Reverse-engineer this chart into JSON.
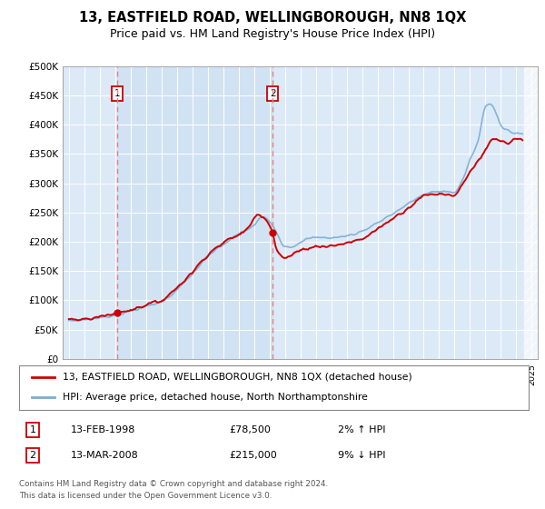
{
  "title": "13, EASTFIELD ROAD, WELLINGBOROUGH, NN8 1QX",
  "subtitle": "Price paid vs. HM Land Registry's House Price Index (HPI)",
  "title_fontsize": 10.5,
  "subtitle_fontsize": 9,
  "background_color": "#ffffff",
  "plot_bg_color": "#dce9f7",
  "plot_bg_color2": "#e8f0fa",
  "ylim": [
    0,
    500000
  ],
  "yticks": [
    0,
    50000,
    100000,
    150000,
    200000,
    250000,
    300000,
    350000,
    400000,
    450000,
    500000
  ],
  "ytick_labels": [
    "£0",
    "£50K",
    "£100K",
    "£150K",
    "£200K",
    "£250K",
    "£300K",
    "£350K",
    "£400K",
    "£450K",
    "£500K"
  ],
  "hpi_color": "#7aadd4",
  "price_color": "#cc0000",
  "marker_color": "#cc0000",
  "dashed_line_color": "#e88080",
  "sale1_year": 1998.12,
  "sale1_price": 78500,
  "sale2_year": 2008.21,
  "sale2_price": 215000,
  "legend_line1": "13, EASTFIELD ROAD, WELLINGBOROUGH, NN8 1QX (detached house)",
  "legend_line2": "HPI: Average price, detached house, North Northamptonshire",
  "footnote1": "Contains HM Land Registry data © Crown copyright and database right 2024.",
  "footnote2": "This data is licensed under the Open Government Licence v3.0.",
  "table_row1_num": "1",
  "table_row1_date": "13-FEB-1998",
  "table_row1_price": "£78,500",
  "table_row1_hpi": "2% ↑ HPI",
  "table_row2_num": "2",
  "table_row2_date": "13-MAR-2008",
  "table_row2_price": "£215,000",
  "table_row2_hpi": "9% ↓ HPI",
  "xlim_start": 1994.6,
  "xlim_end": 2025.4,
  "hpi_years": [
    1995.0,
    1995.1,
    1995.2,
    1995.3,
    1995.4,
    1995.5,
    1995.6,
    1995.7,
    1995.8,
    1995.9,
    1996.0,
    1996.1,
    1996.2,
    1996.3,
    1996.4,
    1996.5,
    1996.6,
    1996.7,
    1996.8,
    1996.9,
    1997.0,
    1997.1,
    1997.2,
    1997.3,
    1997.4,
    1997.5,
    1997.6,
    1997.7,
    1997.8,
    1997.9,
    1998.0,
    1998.1,
    1998.2,
    1998.3,
    1998.4,
    1998.5,
    1998.6,
    1998.7,
    1998.8,
    1998.9,
    1999.0,
    1999.1,
    1999.2,
    1999.3,
    1999.4,
    1999.5,
    1999.6,
    1999.7,
    1999.8,
    1999.9,
    2000.0,
    2000.1,
    2000.2,
    2000.3,
    2000.4,
    2000.5,
    2000.6,
    2000.7,
    2000.8,
    2000.9,
    2001.0,
    2001.1,
    2001.2,
    2001.3,
    2001.4,
    2001.5,
    2001.6,
    2001.7,
    2001.8,
    2001.9,
    2002.0,
    2002.1,
    2002.2,
    2002.3,
    2002.4,
    2002.5,
    2002.6,
    2002.7,
    2002.8,
    2002.9,
    2003.0,
    2003.1,
    2003.2,
    2003.3,
    2003.4,
    2003.5,
    2003.6,
    2003.7,
    2003.8,
    2003.9,
    2004.0,
    2004.1,
    2004.2,
    2004.3,
    2004.4,
    2004.5,
    2004.6,
    2004.7,
    2004.8,
    2004.9,
    2005.0,
    2005.1,
    2005.2,
    2005.3,
    2005.4,
    2005.5,
    2005.6,
    2005.7,
    2005.8,
    2005.9,
    2006.0,
    2006.1,
    2006.2,
    2006.3,
    2006.4,
    2006.5,
    2006.6,
    2006.7,
    2006.8,
    2006.9,
    2007.0,
    2007.1,
    2007.2,
    2007.3,
    2007.4,
    2007.5,
    2007.6,
    2007.7,
    2007.8,
    2007.9,
    2008.0,
    2008.1,
    2008.2,
    2008.3,
    2008.4,
    2008.5,
    2008.6,
    2008.7,
    2008.8,
    2008.9,
    2009.0,
    2009.1,
    2009.2,
    2009.3,
    2009.4,
    2009.5,
    2009.6,
    2009.7,
    2009.8,
    2009.9,
    2010.0,
    2010.1,
    2010.2,
    2010.3,
    2010.4,
    2010.5,
    2010.6,
    2010.7,
    2010.8,
    2010.9,
    2011.0,
    2011.1,
    2011.2,
    2011.3,
    2011.4,
    2011.5,
    2011.6,
    2011.7,
    2011.8,
    2011.9,
    2012.0,
    2012.1,
    2012.2,
    2012.3,
    2012.4,
    2012.5,
    2012.6,
    2012.7,
    2012.8,
    2012.9,
    2013.0,
    2013.1,
    2013.2,
    2013.3,
    2013.4,
    2013.5,
    2013.6,
    2013.7,
    2013.8,
    2013.9,
    2014.0,
    2014.1,
    2014.2,
    2014.3,
    2014.4,
    2014.5,
    2014.6,
    2014.7,
    2014.8,
    2014.9,
    2015.0,
    2015.1,
    2015.2,
    2015.3,
    2015.4,
    2015.5,
    2015.6,
    2015.7,
    2015.8,
    2015.9,
    2016.0,
    2016.1,
    2016.2,
    2016.3,
    2016.4,
    2016.5,
    2016.6,
    2016.7,
    2016.8,
    2016.9,
    2017.0,
    2017.1,
    2017.2,
    2017.3,
    2017.4,
    2017.5,
    2017.6,
    2017.7,
    2017.8,
    2017.9,
    2018.0,
    2018.1,
    2018.2,
    2018.3,
    2018.4,
    2018.5,
    2018.6,
    2018.7,
    2018.8,
    2018.9,
    2019.0,
    2019.1,
    2019.2,
    2019.3,
    2019.4,
    2019.5,
    2019.6,
    2019.7,
    2019.8,
    2019.9,
    2020.0,
    2020.1,
    2020.2,
    2020.3,
    2020.4,
    2020.5,
    2020.6,
    2020.7,
    2020.8,
    2020.9,
    2021.0,
    2021.1,
    2021.2,
    2021.3,
    2021.4,
    2021.5,
    2021.6,
    2021.7,
    2021.8,
    2021.9,
    2022.0,
    2022.1,
    2022.2,
    2022.3,
    2022.4,
    2022.5,
    2022.6,
    2022.7,
    2022.8,
    2022.9,
    2023.0,
    2023.1,
    2023.2,
    2023.3,
    2023.4,
    2023.5,
    2023.6,
    2023.7,
    2023.8,
    2023.9,
    2024.0,
    2024.1,
    2024.2,
    2024.3,
    2024.4
  ],
  "hpi_key_years": [
    1995,
    1996,
    1997,
    1998,
    1999,
    2000,
    2001,
    2002,
    2003,
    2004,
    2005,
    2006,
    2007,
    2007.5,
    2008,
    2008.5,
    2009,
    2009.5,
    2010,
    2011,
    2012,
    2013,
    2014,
    2015,
    2016,
    2017,
    2018,
    2019,
    2020,
    2020.5,
    2021,
    2021.5,
    2022,
    2022.3,
    2022.7,
    2023,
    2023.5,
    2024,
    2024.4
  ],
  "hpi_key_vals": [
    65000,
    67000,
    70000,
    75000,
    82000,
    90000,
    98000,
    118000,
    145000,
    175000,
    195000,
    213000,
    228000,
    242000,
    235000,
    215000,
    192000,
    192000,
    200000,
    207000,
    207000,
    210000,
    218000,
    233000,
    248000,
    265000,
    280000,
    286000,
    285000,
    305000,
    340000,
    370000,
    430000,
    435000,
    420000,
    400000,
    390000,
    385000,
    385000
  ],
  "price_key_years": [
    1995,
    1996,
    1997,
    1998.12,
    1999,
    2000,
    2001,
    2002,
    2003,
    2004,
    2005,
    2006,
    2006.5,
    2007,
    2007.3,
    2007.5,
    2008.0,
    2008.21,
    2008.5,
    2009.0,
    2009.3,
    2009.5,
    2010,
    2011,
    2012,
    2013,
    2014,
    2015,
    2016,
    2017,
    2018,
    2019,
    2020,
    2020.5,
    2021,
    2022,
    2022.5,
    2023,
    2023.5,
    2024,
    2024.4
  ],
  "price_key_vals": [
    66000,
    68000,
    72000,
    78500,
    84000,
    92000,
    100000,
    122000,
    148000,
    178000,
    198000,
    212000,
    220000,
    240000,
    248000,
    245000,
    230000,
    215000,
    185000,
    172000,
    175000,
    178000,
    185000,
    192000,
    193000,
    198000,
    205000,
    222000,
    240000,
    258000,
    278000,
    282000,
    280000,
    298000,
    320000,
    355000,
    375000,
    372000,
    368000,
    375000,
    372000
  ]
}
